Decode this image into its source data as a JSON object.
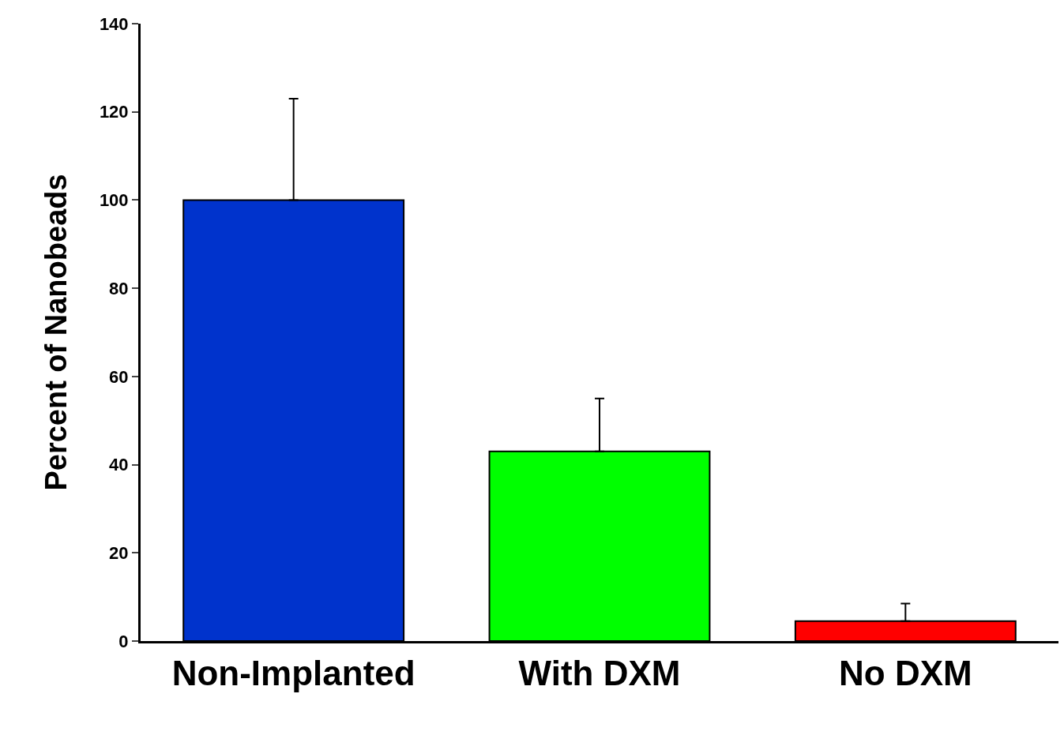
{
  "chart_data": {
    "type": "bar",
    "ylabel": "Percent of Nanobeads",
    "categories": [
      "Non-Implanted",
      "With DXM",
      "No DXM"
    ],
    "values": [
      100,
      43,
      4.5
    ],
    "colors": [
      "#0033cc",
      "#00ff00",
      "#ff0000"
    ],
    "errors": [
      [
        100,
        123
      ],
      [
        43,
        55
      ],
      [
        4.5,
        8.5
      ]
    ],
    "ylim": [
      0,
      140
    ],
    "yticks": [
      0,
      20,
      40,
      60,
      80,
      100,
      120,
      140
    ]
  }
}
